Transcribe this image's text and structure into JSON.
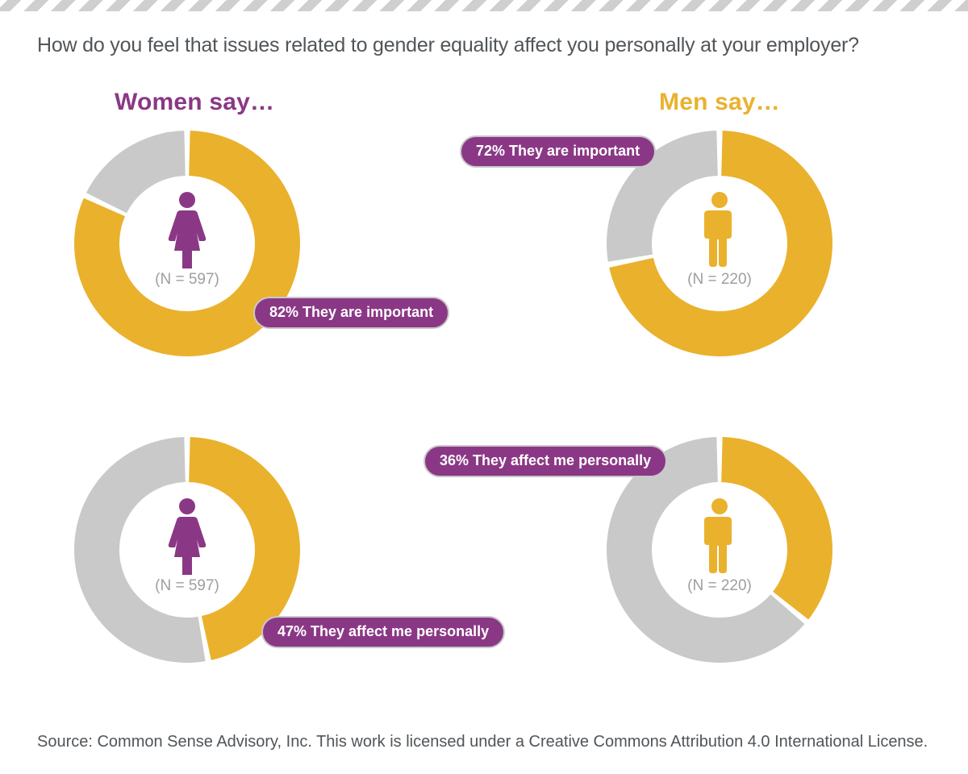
{
  "colors": {
    "title_text": "#505559",
    "women_accent": "#8a3885",
    "men_accent": "#eab12d",
    "donut_filled": "#eab12d",
    "donut_remainder": "#c9c9c9",
    "pill_bg": "#8a3885",
    "pill_border": "#c9c9c9",
    "pill_text": "#ffffff",
    "nlabel_text": "#9e9e9e",
    "icon_women": "#8a3885",
    "icon_men": "#eab12d",
    "background": "#ffffff",
    "source_text": "#505559"
  },
  "title": {
    "text": "How do you feel that issues related to gender equality affect you personally at your employer?",
    "fontsize": 25
  },
  "columns": {
    "women": {
      "header": "Women say…",
      "header_fontsize": 30,
      "n_label": "(N = 597)",
      "n_fontsize": 19
    },
    "men": {
      "header": "Men say…",
      "header_fontsize": 30,
      "n_label": "(N = 220)",
      "n_fontsize": 19
    }
  },
  "donuts": {
    "outer_radius": 140,
    "inner_radius": 84,
    "gap_deg": 3,
    "start_angle_deg": -90,
    "rows": [
      {
        "key": "important",
        "women": {
          "pct": 82,
          "pill": "82% They are important"
        },
        "men": {
          "pct": 72,
          "pill": "72% They are important"
        }
      },
      {
        "key": "affect_personally",
        "women": {
          "pct": 47,
          "pill": "47% They affect me personally"
        },
        "men": {
          "pct": 36,
          "pill": "36% They affect me personally"
        }
      }
    ],
    "pill_fontsize": 18
  },
  "source": {
    "text": "Source: Common Sense Advisory, Inc. This work is licensed under a Creative Commons Attribution 4.0 International License.",
    "fontsize": 20
  }
}
